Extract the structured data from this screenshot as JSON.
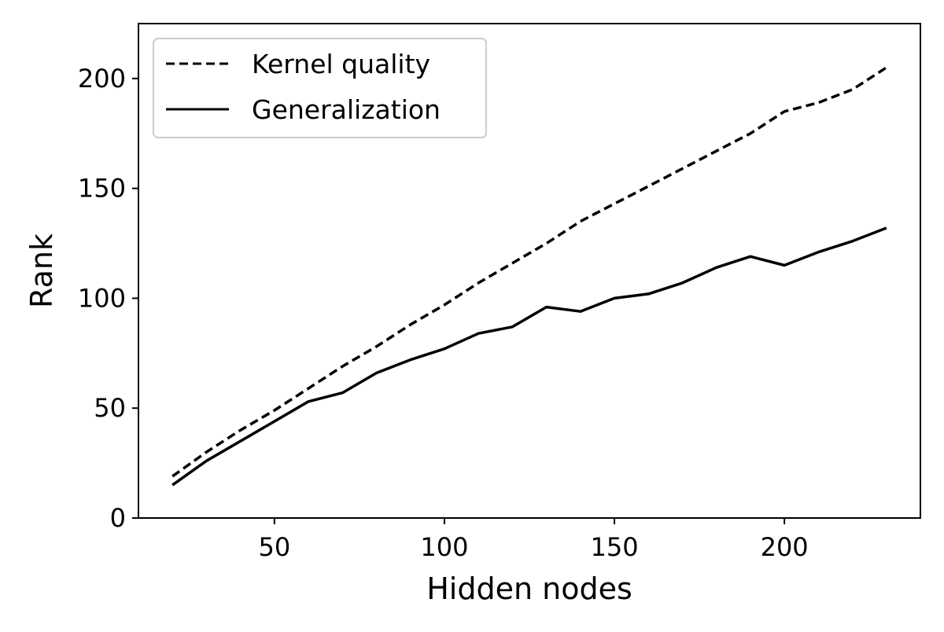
{
  "chart_data": {
    "type": "line",
    "title": "",
    "xlabel": "Hidden nodes",
    "ylabel": "Rank",
    "xlim": [
      10,
      240
    ],
    "ylim": [
      0,
      225
    ],
    "xticks": [
      50,
      100,
      150,
      200
    ],
    "yticks": [
      0,
      50,
      100,
      150,
      200
    ],
    "grid": false,
    "legend_position": "upper-left",
    "x": [
      20,
      30,
      40,
      50,
      60,
      70,
      80,
      90,
      100,
      110,
      120,
      130,
      140,
      150,
      160,
      170,
      180,
      190,
      200,
      210,
      220,
      230
    ],
    "series": [
      {
        "name": "Kernel quality",
        "line_style": "dashed",
        "color": "#000000",
        "values": [
          19,
          30,
          40,
          49,
          59,
          69,
          78,
          88,
          97,
          107,
          116,
          125,
          135,
          143,
          151,
          159,
          167,
          175,
          185,
          189,
          195,
          205
        ]
      },
      {
        "name": "Generalization",
        "line_style": "solid",
        "color": "#000000",
        "values": [
          15,
          26,
          35,
          44,
          53,
          57,
          66,
          72,
          77,
          84,
          87,
          96,
          94,
          100,
          102,
          107,
          114,
          119,
          115,
          121,
          126,
          132
        ]
      }
    ]
  }
}
